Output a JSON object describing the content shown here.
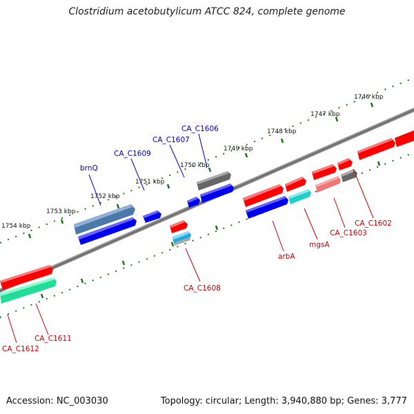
{
  "title": "Clostridium acetobutylicum ATCC 824, complete genome",
  "footer": {
    "accession": "Accession: NC_003030",
    "summary": "Topology: circular; Length: 3,940,880 bp; Genes: 3,777"
  },
  "ruler_labels": [
    "1746 kbp",
    "1747 kbp",
    "1748 kbp",
    "1749 kbp",
    "1750 kbp",
    "1751 kbp",
    "1752 kbp",
    "1753 kbp",
    "1754 kbp"
  ],
  "gene_labels_forward": [
    "brnQ",
    "CA_C1609",
    "CA_C1607",
    "CA_C1606"
  ],
  "gene_labels_reverse": [
    "CA_C1602",
    "CA_C1603",
    "mgsA",
    "arbA",
    "CA_C1608",
    "CA_C1611",
    "CA_C1612"
  ],
  "colors": {
    "forward_label": "#0000cc",
    "reverse_label": "#cc0000",
    "red": "#ff0000",
    "blue": "#0000ee",
    "steelblue": "#4a78a8",
    "gray": "#666666",
    "cyan": "#22cccc",
    "teal": "#22dd99",
    "salmon": "#ee7777",
    "tick": "#1a7a1a",
    "backbone": "#777777"
  }
}
